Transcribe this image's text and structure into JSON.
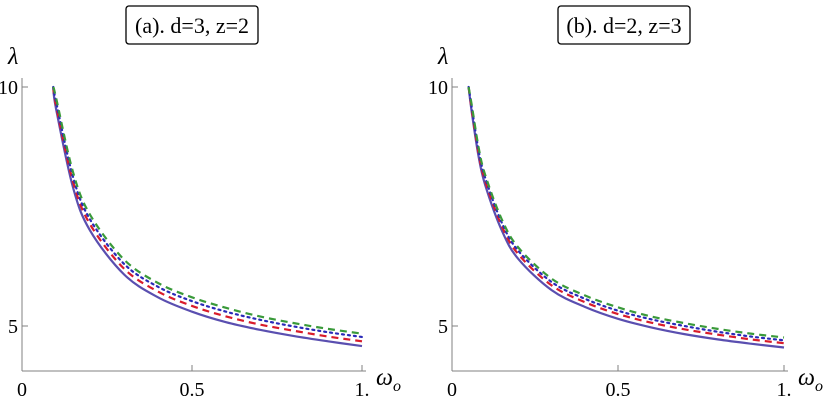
{
  "chart_data": [
    {
      "type": "line",
      "title": "(a). d=3, z=2",
      "xlabel": "ω",
      "xlabel_sub": "o",
      "ylabel": "λ",
      "xlim": [
        0,
        1
      ],
      "ylim": [
        4.3,
        10
      ],
      "x_ticks": [
        0,
        0.5,
        1
      ],
      "x_tick_labels": [
        "0",
        "0.5",
        "1."
      ],
      "y_ticks": [
        5,
        10
      ],
      "y_tick_labels": [
        "5",
        "10"
      ],
      "grid": false,
      "series": [
        {
          "color": "#5a4fb0",
          "style": "solid",
          "x": [
            0.092,
            0.1,
            0.15,
            0.2,
            0.3,
            0.4,
            0.5,
            0.6,
            0.7,
            0.8,
            0.9,
            1.0
          ],
          "y": [
            10.0,
            9.55,
            7.9,
            7.0,
            6.08,
            5.6,
            5.3,
            5.08,
            4.92,
            4.79,
            4.68,
            4.58
          ]
        },
        {
          "color": "#d91c2b",
          "style": "dashed",
          "x": [
            0.092,
            0.1,
            0.15,
            0.2,
            0.3,
            0.4,
            0.5,
            0.6,
            0.7,
            0.8,
            0.9,
            1.0
          ],
          "y": [
            10.0,
            9.62,
            8.02,
            7.13,
            6.2,
            5.72,
            5.42,
            5.2,
            5.03,
            4.9,
            4.78,
            4.68
          ]
        },
        {
          "color": "#2a2ab8",
          "style": "dotted",
          "x": [
            0.092,
            0.1,
            0.15,
            0.2,
            0.3,
            0.4,
            0.5,
            0.6,
            0.7,
            0.8,
            0.9,
            1.0
          ],
          "y": [
            10.0,
            9.7,
            8.12,
            7.23,
            6.3,
            5.82,
            5.52,
            5.3,
            5.13,
            4.99,
            4.87,
            4.77
          ]
        },
        {
          "color": "#3a9a3a",
          "style": "dashed",
          "x": [
            0.092,
            0.1,
            0.15,
            0.2,
            0.3,
            0.4,
            0.5,
            0.6,
            0.7,
            0.8,
            0.9,
            1.0
          ],
          "y": [
            10.0,
            9.78,
            8.22,
            7.33,
            6.39,
            5.9,
            5.6,
            5.38,
            5.2,
            5.06,
            4.94,
            4.84
          ]
        }
      ]
    },
    {
      "type": "line",
      "title": "(b). d=2, z=3",
      "xlabel": "ω",
      "xlabel_sub": "o",
      "ylabel": "λ",
      "xlim": [
        0,
        1
      ],
      "ylim": [
        4.3,
        10
      ],
      "x_ticks": [
        0,
        0.5,
        1
      ],
      "x_tick_labels": [
        "0",
        "0.5",
        "1."
      ],
      "y_ticks": [
        5,
        10
      ],
      "y_tick_labels": [
        "5",
        "10"
      ],
      "grid": false,
      "series": [
        {
          "color": "#5a4fb0",
          "style": "solid",
          "x": [
            0.05,
            0.06,
            0.08,
            0.1,
            0.15,
            0.2,
            0.3,
            0.4,
            0.5,
            0.6,
            0.7,
            0.8,
            0.9,
            1.0
          ],
          "y": [
            10.0,
            9.45,
            8.55,
            7.95,
            7.0,
            6.4,
            5.75,
            5.4,
            5.15,
            4.97,
            4.83,
            4.72,
            4.63,
            4.55
          ]
        },
        {
          "color": "#d91c2b",
          "style": "dashed",
          "x": [
            0.05,
            0.06,
            0.08,
            0.1,
            0.15,
            0.2,
            0.3,
            0.4,
            0.5,
            0.6,
            0.7,
            0.8,
            0.9,
            1.0
          ],
          "y": [
            10.0,
            9.5,
            8.62,
            8.03,
            7.09,
            6.5,
            5.85,
            5.5,
            5.25,
            5.07,
            4.93,
            4.82,
            4.72,
            4.64
          ]
        },
        {
          "color": "#2a2ab8",
          "style": "dotted",
          "x": [
            0.05,
            0.06,
            0.08,
            0.1,
            0.15,
            0.2,
            0.3,
            0.4,
            0.5,
            0.6,
            0.7,
            0.8,
            0.9,
            1.0
          ],
          "y": [
            10.0,
            9.55,
            8.68,
            8.1,
            7.16,
            6.57,
            5.92,
            5.57,
            5.32,
            5.14,
            5.0,
            4.88,
            4.78,
            4.7
          ]
        },
        {
          "color": "#3a9a3a",
          "style": "dashed",
          "x": [
            0.05,
            0.06,
            0.08,
            0.1,
            0.15,
            0.2,
            0.3,
            0.4,
            0.5,
            0.6,
            0.7,
            0.8,
            0.9,
            1.0
          ],
          "y": [
            10.0,
            9.6,
            8.74,
            8.16,
            7.23,
            6.64,
            5.99,
            5.64,
            5.39,
            5.2,
            5.06,
            4.94,
            4.84,
            4.76
          ]
        }
      ]
    }
  ]
}
